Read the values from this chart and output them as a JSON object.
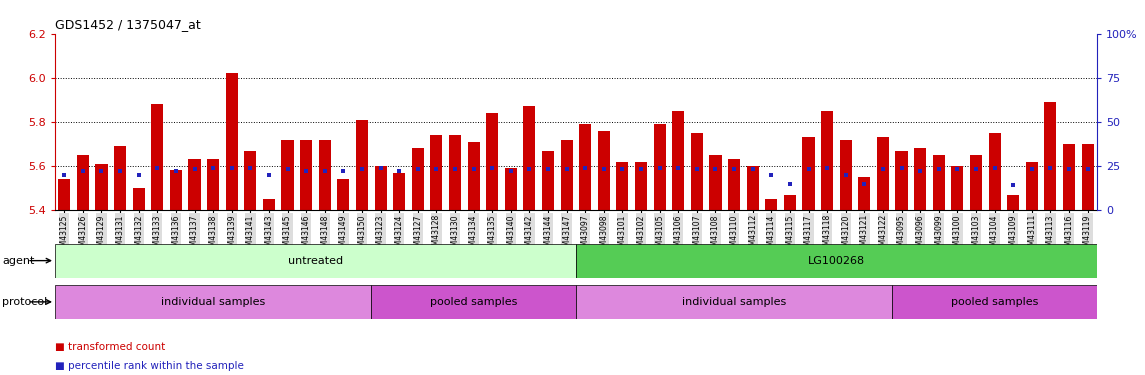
{
  "title": "GDS1452 / 1375047_at",
  "ylim_left": [
    5.4,
    6.2
  ],
  "ylim_right": [
    0,
    100
  ],
  "yticks_left": [
    5.4,
    5.6,
    5.8,
    6.0,
    6.2
  ],
  "yticks_right": [
    0,
    25,
    50,
    75,
    100
  ],
  "samples": [
    "GSM43125",
    "GSM43126",
    "GSM43129",
    "GSM43131",
    "GSM43132",
    "GSM43133",
    "GSM43136",
    "GSM43137",
    "GSM43138",
    "GSM43139",
    "GSM43141",
    "GSM43143",
    "GSM43145",
    "GSM43146",
    "GSM43148",
    "GSM43149",
    "GSM43150",
    "GSM43123",
    "GSM43124",
    "GSM43127",
    "GSM43128",
    "GSM43130",
    "GSM43134",
    "GSM43135",
    "GSM43140",
    "GSM43142",
    "GSM43144",
    "GSM43147",
    "GSM43097",
    "GSM43098",
    "GSM43101",
    "GSM43102",
    "GSM43105",
    "GSM43106",
    "GSM43107",
    "GSM43108",
    "GSM43110",
    "GSM43112",
    "GSM43114",
    "GSM43115",
    "GSM43117",
    "GSM43118",
    "GSM43120",
    "GSM43121",
    "GSM43122",
    "GSM43095",
    "GSM43096",
    "GSM43099",
    "GSM43100",
    "GSM43103",
    "GSM43104",
    "GSM43109",
    "GSM43111",
    "GSM43113",
    "GSM43116",
    "GSM43119"
  ],
  "red_values": [
    5.54,
    5.65,
    5.61,
    5.69,
    5.5,
    5.88,
    5.58,
    5.63,
    5.63,
    6.02,
    5.67,
    5.45,
    5.72,
    5.72,
    5.72,
    5.54,
    5.81,
    5.6,
    5.57,
    5.68,
    5.74,
    5.74,
    5.71,
    5.84,
    5.59,
    5.87,
    5.67,
    5.72,
    5.79,
    5.76,
    5.62,
    5.62,
    5.79,
    5.85,
    5.75,
    5.65,
    5.63,
    5.6,
    5.45,
    5.47,
    5.73,
    5.85,
    5.72,
    5.55,
    5.73,
    5.67,
    5.68,
    5.65,
    5.6,
    5.65,
    5.75,
    5.47,
    5.62,
    5.89,
    5.7,
    5.7
  ],
  "blue_percentiles": [
    20,
    22,
    22,
    22,
    20,
    24,
    22,
    23,
    24,
    24,
    24,
    20,
    23,
    22,
    22,
    22,
    23,
    24,
    22,
    23,
    23,
    23,
    23,
    24,
    22,
    23,
    23,
    23,
    24,
    23,
    23,
    23,
    24,
    24,
    23,
    23,
    23,
    23,
    20,
    15,
    23,
    24,
    20,
    15,
    23,
    24,
    22,
    23,
    23,
    23,
    24,
    14,
    23,
    24,
    23,
    23
  ],
  "agent_groups": [
    {
      "label": "untreated",
      "start": 0,
      "end": 28,
      "color": "#ccffcc"
    },
    {
      "label": "LG100268",
      "start": 28,
      "end": 56,
      "color": "#55cc55"
    }
  ],
  "protocol_groups": [
    {
      "label": "individual samples",
      "start": 0,
      "end": 17,
      "color": "#dd88dd"
    },
    {
      "label": "pooled samples",
      "start": 17,
      "end": 28,
      "color": "#cc55cc"
    },
    {
      "label": "individual samples",
      "start": 28,
      "end": 45,
      "color": "#dd88dd"
    },
    {
      "label": "pooled samples",
      "start": 45,
      "end": 56,
      "color": "#cc55cc"
    }
  ],
  "bar_color": "#cc0000",
  "dot_color": "#2222bb",
  "base_value": 5.4,
  "grid_lines": [
    5.6,
    5.8,
    6.0
  ],
  "agent_label_color": "#000000",
  "protocol_label_color": "#000000"
}
